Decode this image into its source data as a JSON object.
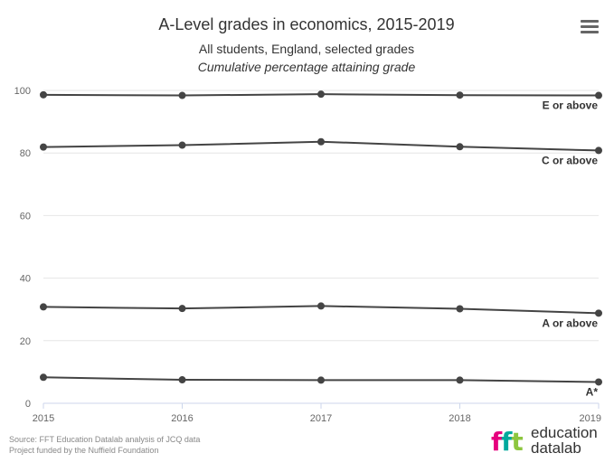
{
  "menu_icon": "hamburger-menu-icon",
  "credits": {
    "source": "Source: FFT Education Datalab analysis of JCQ data",
    "funding": "Project funded by the Nuffield Foundation"
  },
  "logo": {
    "mark": [
      "f",
      "f",
      "t"
    ],
    "line1": "education",
    "line2": "datalab",
    "colors": [
      "#e6007e",
      "#00a99d",
      "#8dc63f"
    ]
  },
  "chart_data": {
    "type": "line",
    "title": "A-Level grades in economics, 2015-2019",
    "subtitle": "All students, England, selected grades",
    "subtitle2": "Cumulative percentage attaining grade",
    "x": [
      "2015",
      "2016",
      "2017",
      "2018",
      "2019"
    ],
    "ylim": [
      0,
      100
    ],
    "yticks": [
      0,
      20,
      40,
      60,
      80,
      100
    ],
    "grid": true,
    "line_color": "#444444",
    "series": [
      {
        "name": "E or above",
        "values": [
          98.6,
          98.4,
          98.8,
          98.5,
          98.4
        ]
      },
      {
        "name": "C or above",
        "values": [
          81.9,
          82.5,
          83.6,
          82.0,
          80.8
        ]
      },
      {
        "name": "A or above",
        "values": [
          30.8,
          30.3,
          31.1,
          30.2,
          28.8
        ]
      },
      {
        "name": "A*",
        "values": [
          8.3,
          7.5,
          7.4,
          7.4,
          6.8
        ]
      }
    ]
  }
}
